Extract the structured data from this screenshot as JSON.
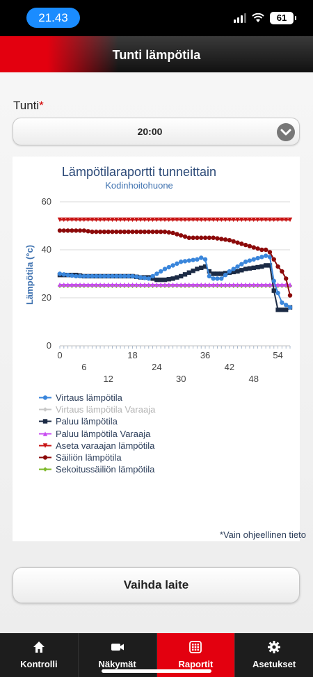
{
  "status_bar": {
    "time": "21.43",
    "battery": "61"
  },
  "header": {
    "title": "Tunti lämpötila"
  },
  "form": {
    "hour_label": "Tunti",
    "required_mark": "*",
    "hour_value": "20:00"
  },
  "chart_data": {
    "type": "line",
    "title": "Lämpötilaraportti tunneittain",
    "subtitle": "Kodinhoitohuone",
    "ylabel": "Lämpötila (°c)",
    "xlabel": "",
    "ylim": [
      0,
      60
    ],
    "xlim": [
      0,
      57
    ],
    "yticks": [
      0,
      20,
      40,
      60
    ],
    "xticks": [
      0,
      6,
      12,
      18,
      24,
      30,
      36,
      42,
      48,
      54
    ],
    "grid": true,
    "legend_position": "bottom-left",
    "series": [
      {
        "name": "Virtaus lämpötila",
        "color": "#3a86db",
        "marker": "circle",
        "x": [
          0,
          2,
          4,
          6,
          8,
          10,
          12,
          14,
          16,
          18,
          20,
          22,
          24,
          26,
          28,
          30,
          32,
          34,
          35.5,
          36,
          37,
          38,
          40,
          42,
          44,
          46,
          48,
          50,
          51,
          52,
          53,
          54,
          55,
          56,
          57
        ],
        "y": [
          30,
          29.5,
          29,
          29,
          29,
          29,
          29,
          29,
          29,
          29,
          28.5,
          28,
          30,
          32,
          33.5,
          35,
          35.5,
          36,
          37,
          36,
          29,
          28,
          28,
          31,
          33,
          35,
          36,
          37,
          37.5,
          37,
          27,
          22,
          18,
          17,
          16
        ]
      },
      {
        "name": "Virtaus lämpötila Varaaja",
        "color": "#c8c8c8",
        "marker": "diamond",
        "x": [],
        "y": []
      },
      {
        "name": "Paluu lämpötila",
        "color": "#1c2b45",
        "marker": "square",
        "x": [
          0,
          2,
          4,
          6,
          8,
          10,
          12,
          14,
          16,
          18,
          20,
          22,
          24,
          26,
          28,
          30,
          32,
          34,
          35,
          36,
          37,
          38,
          40,
          42,
          44,
          46,
          48,
          50,
          51,
          52,
          53,
          54,
          55,
          56,
          57
        ],
        "y": [
          29.5,
          29.5,
          29.5,
          29,
          29,
          29,
          29,
          29,
          29,
          29,
          28.5,
          28.5,
          27.5,
          27.5,
          28,
          29,
          30.5,
          32,
          32.5,
          33,
          31,
          30,
          30,
          30.5,
          31,
          32,
          32.5,
          33,
          33.5,
          33.5,
          23,
          15,
          15,
          15,
          16
        ]
      },
      {
        "name": "Paluu lämpötila Varaaja",
        "color": "#c84cf0",
        "marker": "triangle-up",
        "x": [
          0,
          57
        ],
        "y": [
          25.5,
          25.5
        ]
      },
      {
        "name": "Aseta varaajan lämpötila",
        "color": "#c81414",
        "marker": "triangle-down",
        "x": [
          0,
          57
        ],
        "y": [
          52.5,
          52.5
        ]
      },
      {
        "name": "Säiliön lämpötila",
        "color": "#8c0a0a",
        "marker": "circle",
        "x": [
          0,
          2,
          4,
          6,
          8,
          10,
          12,
          14,
          16,
          18,
          20,
          22,
          24,
          26,
          28,
          30,
          32,
          34,
          36,
          38,
          40,
          42,
          44,
          46,
          48,
          50,
          51,
          52,
          53,
          54,
          55,
          56,
          57
        ],
        "y": [
          48,
          48,
          48,
          48,
          47.5,
          47.5,
          47.5,
          47.5,
          47.5,
          47.5,
          47.5,
          47.5,
          47.5,
          47.5,
          47,
          46,
          45,
          45,
          45,
          45,
          44.5,
          44,
          43,
          42,
          41,
          40,
          40,
          39,
          36,
          33,
          31,
          28,
          21
        ]
      },
      {
        "name": "Sekoitussäiliön lämpötila",
        "color": "#7db92a",
        "marker": "diamond",
        "x": [
          0,
          57
        ],
        "y": [
          25,
          25
        ]
      }
    ]
  },
  "note": "*Vain ohjeellinen tieto",
  "change_button": "Vaihda laite",
  "tabs": [
    {
      "label": "Kontrolli",
      "icon": "home-icon"
    },
    {
      "label": "Näkymät",
      "icon": "camera-icon"
    },
    {
      "label": "Raportit",
      "icon": "grid-icon"
    },
    {
      "label": "Asetukset",
      "icon": "gear-icon"
    }
  ]
}
